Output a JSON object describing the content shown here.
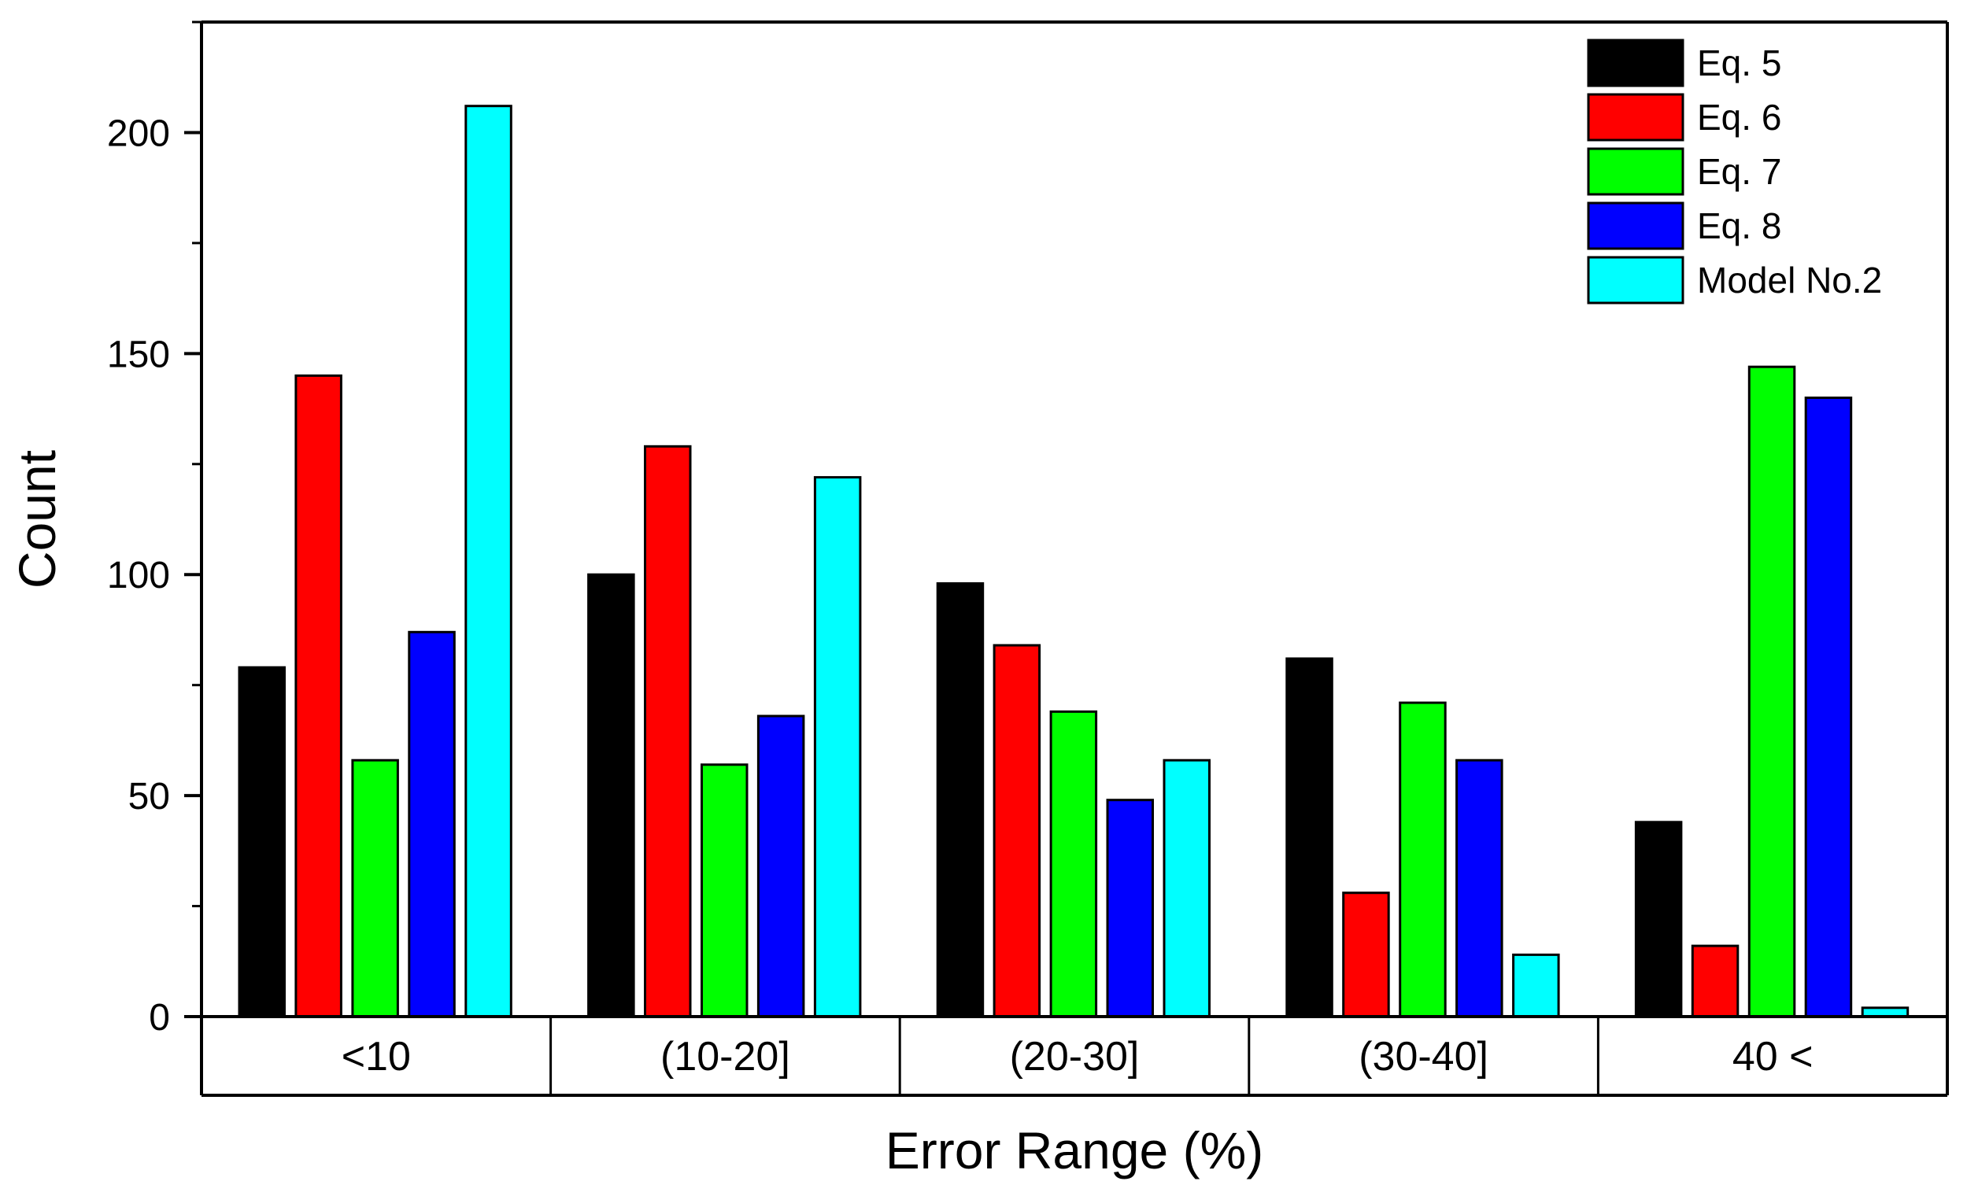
{
  "chart_data": {
    "type": "bar",
    "title": "",
    "xlabel": "Error Range (%)",
    "ylabel": "Count",
    "ylim": [
      0,
      225
    ],
    "yticks": [
      0,
      50,
      100,
      150,
      200
    ],
    "categories": [
      "<10",
      "(10-20]",
      "(20-30]",
      "(30-40]",
      "40 <"
    ],
    "series": [
      {
        "name": "Eq. 5",
        "color": "#000000",
        "values": [
          79,
          100,
          98,
          81,
          44
        ]
      },
      {
        "name": "Eq. 6",
        "color": "#ff0000",
        "values": [
          145,
          129,
          84,
          28,
          16
        ]
      },
      {
        "name": "Eq. 7",
        "color": "#00ff00",
        "values": [
          58,
          57,
          69,
          71,
          147
        ]
      },
      {
        "name": "Eq. 8",
        "color": "#0000ff",
        "values": [
          87,
          68,
          49,
          58,
          140
        ]
      },
      {
        "name": "Model No.2",
        "color": "#00ffff",
        "values": [
          206,
          122,
          58,
          14,
          2
        ]
      }
    ],
    "legend_position": "top-right",
    "grid": false
  }
}
